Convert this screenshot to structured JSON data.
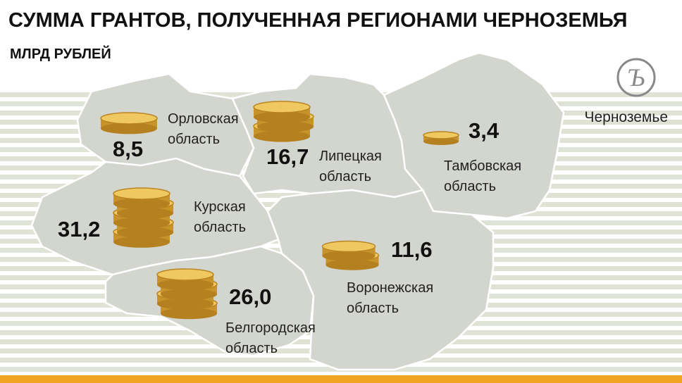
{
  "header": {
    "title": "СУММА ГРАНТОВ, ПОЛУЧЕННАЯ РЕГИОНАМИ ЧЕРНОЗЕМЬЯ",
    "subtitle": "МЛРД РУБЛЕЙ"
  },
  "logo": {
    "text": "Черноземье"
  },
  "regions": [
    {
      "name": [
        "Орловская",
        "область"
      ],
      "value": "8,5"
    },
    {
      "name": [
        "Липецкая",
        "область"
      ],
      "value": "16,7"
    },
    {
      "name": [
        "Тамбовская",
        "область"
      ],
      "value": "3,4"
    },
    {
      "name": [
        "Курская",
        "область"
      ],
      "value": "31,2"
    },
    {
      "name": [
        "Белгородская",
        "область"
      ],
      "value": "26,0"
    },
    {
      "name": [
        "Воронежская",
        "область"
      ],
      "value": "11,6"
    }
  ]
}
